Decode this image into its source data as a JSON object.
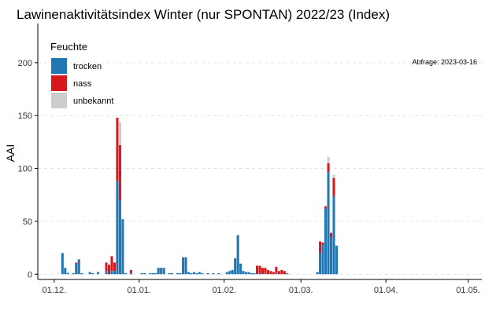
{
  "chart_data": {
    "type": "bar",
    "stacked": true,
    "title": "Lawinenaktivitätsindex Winter (nur SPONTAN) 2022/23 (Index)",
    "xlabel": "",
    "ylabel": "AAI",
    "xlim": [
      "2022-11-25",
      "2023-05-06"
    ],
    "ylim": [
      -5,
      237
    ],
    "yticks": [
      0,
      50,
      100,
      150,
      200
    ],
    "xticks": [
      {
        "date": "2022-12-01",
        "label": "01.12."
      },
      {
        "date": "2023-01-01",
        "label": "01.01."
      },
      {
        "date": "2023-02-01",
        "label": "01.02."
      },
      {
        "date": "2023-03-01",
        "label": "01.03."
      },
      {
        "date": "2023-04-01",
        "label": "01.04."
      },
      {
        "date": "2023-05-01",
        "label": "01.05."
      }
    ],
    "grid": "horizontal dashed",
    "legend": {
      "title": "Feuchte",
      "position": "top-left",
      "entries": [
        {
          "name": "trocken",
          "color": "#1f77b4"
        },
        {
          "name": "nass",
          "color": "#d7191c"
        },
        {
          "name": "unbekannt",
          "color": "#cccccc"
        }
      ]
    },
    "annotation": "Abfrage: 2023-03-16",
    "series": [
      {
        "name": "trocken",
        "color": "#1f77b4",
        "points": [
          [
            "2022-12-04",
            20
          ],
          [
            "2022-12-05",
            6
          ],
          [
            "2022-12-06",
            1
          ],
          [
            "2022-12-08",
            1
          ],
          [
            "2022-12-09",
            10
          ],
          [
            "2022-12-10",
            14
          ],
          [
            "2022-12-11",
            1
          ],
          [
            "2022-12-14",
            2
          ],
          [
            "2022-12-15",
            1
          ],
          [
            "2022-12-17",
            2
          ],
          [
            "2022-12-20",
            3
          ],
          [
            "2022-12-22",
            3
          ],
          [
            "2022-12-23",
            3
          ],
          [
            "2022-12-24",
            88
          ],
          [
            "2022-12-25",
            70
          ],
          [
            "2022-12-26",
            52
          ],
          [
            "2022-12-27",
            1
          ],
          [
            "2022-12-29",
            1
          ],
          [
            "2023-01-02",
            1
          ],
          [
            "2023-01-03",
            1
          ],
          [
            "2023-01-05",
            1
          ],
          [
            "2023-01-06",
            1
          ],
          [
            "2023-01-07",
            1
          ],
          [
            "2023-01-08",
            6
          ],
          [
            "2023-01-09",
            6
          ],
          [
            "2023-01-10",
            6
          ],
          [
            "2023-01-12",
            1
          ],
          [
            "2023-01-13",
            1
          ],
          [
            "2023-01-15",
            1
          ],
          [
            "2023-01-16",
            1
          ],
          [
            "2023-01-17",
            16
          ],
          [
            "2023-01-18",
            16
          ],
          [
            "2023-01-19",
            2
          ],
          [
            "2023-01-20",
            1
          ],
          [
            "2023-01-21",
            2
          ],
          [
            "2023-01-22",
            1
          ],
          [
            "2023-01-23",
            2
          ],
          [
            "2023-01-24",
            1
          ],
          [
            "2023-01-26",
            1
          ],
          [
            "2023-01-28",
            1
          ],
          [
            "2023-01-30",
            1
          ],
          [
            "2023-02-02",
            2
          ],
          [
            "2023-02-03",
            3
          ],
          [
            "2023-02-04",
            4
          ],
          [
            "2023-02-05",
            15
          ],
          [
            "2023-02-06",
            37
          ],
          [
            "2023-02-07",
            10
          ],
          [
            "2023-02-08",
            3
          ],
          [
            "2023-02-09",
            2
          ],
          [
            "2023-02-10",
            2
          ],
          [
            "2023-02-11",
            1
          ],
          [
            "2023-02-12",
            1
          ],
          [
            "2023-02-14",
            1
          ],
          [
            "2023-02-16",
            1
          ],
          [
            "2023-02-20",
            1
          ],
          [
            "2023-02-24",
            1
          ],
          [
            "2023-03-07",
            2
          ],
          [
            "2023-03-08",
            20
          ],
          [
            "2023-03-09",
            28
          ],
          [
            "2023-03-10",
            62
          ],
          [
            "2023-03-11",
            97
          ],
          [
            "2023-03-12",
            35
          ],
          [
            "2023-03-13",
            74
          ],
          [
            "2023-03-14",
            27
          ]
        ]
      },
      {
        "name": "nass",
        "color": "#d7191c",
        "points": [
          [
            "2022-12-09",
            1
          ],
          [
            "2022-12-10",
            0
          ],
          [
            "2022-12-20",
            8
          ],
          [
            "2022-12-21",
            9
          ],
          [
            "2022-12-22",
            14
          ],
          [
            "2022-12-23",
            8
          ],
          [
            "2022-12-24",
            60
          ],
          [
            "2022-12-25",
            52
          ],
          [
            "2022-12-29",
            3
          ],
          [
            "2023-02-13",
            8
          ],
          [
            "2023-02-14",
            7
          ],
          [
            "2023-02-15",
            6
          ],
          [
            "2023-02-16",
            5
          ],
          [
            "2023-02-17",
            4
          ],
          [
            "2023-02-18",
            3
          ],
          [
            "2023-02-19",
            2
          ],
          [
            "2023-02-20",
            6
          ],
          [
            "2023-02-21",
            3
          ],
          [
            "2023-02-22",
            4
          ],
          [
            "2023-02-23",
            3
          ],
          [
            "2023-03-08",
            11
          ],
          [
            "2023-03-09",
            2
          ],
          [
            "2023-03-10",
            2
          ],
          [
            "2023-03-11",
            8
          ],
          [
            "2023-03-12",
            4
          ],
          [
            "2023-03-13",
            17
          ]
        ]
      },
      {
        "name": "unbekannt",
        "color": "#cccccc",
        "points": [
          [
            "2022-12-06",
            1
          ],
          [
            "2022-12-25",
            22
          ],
          [
            "2023-03-10",
            1
          ],
          [
            "2023-03-11",
            6
          ],
          [
            "2023-03-12",
            1
          ],
          [
            "2023-03-13",
            3
          ]
        ]
      }
    ]
  }
}
